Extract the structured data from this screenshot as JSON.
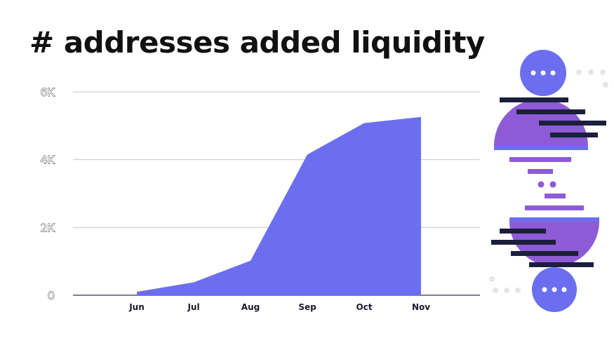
{
  "title": "# addresses added liquidity",
  "colors": {
    "area": "#6B6FEF",
    "grid": "#c8c8c8",
    "text": "#111111",
    "deco_purple": "#8E5BD6",
    "deco_blue": "#6B6FEF",
    "deco_dark": "#1B1F3B"
  },
  "chart_data": {
    "type": "area",
    "title": "# addresses added liquidity",
    "xlabel": "",
    "ylabel": "",
    "categories": [
      "Jun",
      "Jul",
      "Aug",
      "Sep",
      "Oct",
      "Nov"
    ],
    "values": [
      100,
      380,
      1020,
      4150,
      5080,
      5260
    ],
    "ylim": [
      0,
      6000
    ],
    "yticks": [
      0,
      2000,
      4000,
      6000
    ],
    "ytick_labels": [
      "0",
      "2K",
      "4K",
      "6K"
    ],
    "grid": true,
    "legend": "none"
  }
}
